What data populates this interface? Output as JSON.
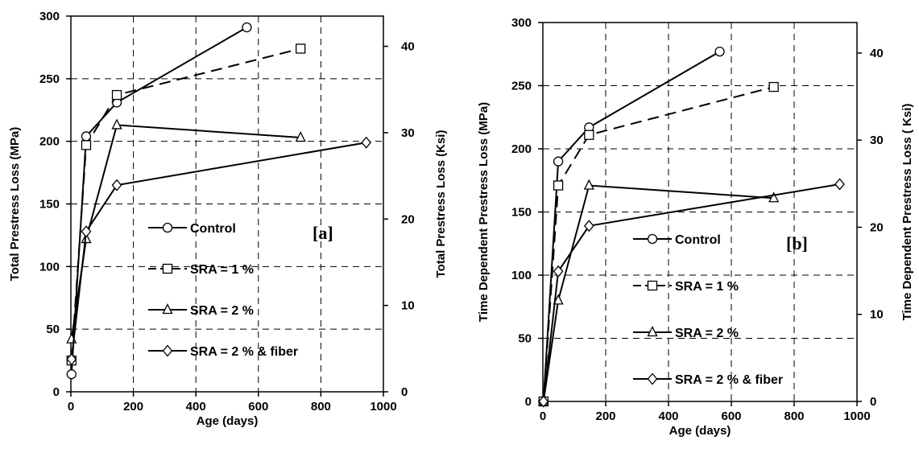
{
  "chart_data": [
    {
      "type": "line",
      "panel_label": "[a]",
      "xlabel": "Age (days)",
      "ylabel": "Total Prestress Loss (MPa)",
      "y2label": "Total Prestress Loss (Ksi)",
      "xlim": [
        0,
        1000
      ],
      "ylim": [
        0,
        300
      ],
      "y2lim": [
        0,
        43.5
      ],
      "xticks": [
        "0",
        "200",
        "400",
        "600",
        "800",
        "1000"
      ],
      "xtick_values": [
        0,
        200,
        400,
        600,
        800,
        1000
      ],
      "yticks": [
        "0",
        "50",
        "100",
        "150",
        "200",
        "250",
        "300"
      ],
      "ytick_values": [
        0,
        50,
        100,
        150,
        200,
        250,
        300
      ],
      "y2ticks": [
        "0",
        "10",
        "20",
        "30",
        "40"
      ],
      "y2tick_values": [
        0,
        10,
        20,
        30,
        40
      ],
      "grid": true,
      "legend_position": "center-right",
      "series": [
        {
          "name": "Control",
          "marker": "circle",
          "dash": "solid",
          "x": [
            2,
            49,
            147,
            563
          ],
          "y": [
            14,
            204,
            231,
            291
          ]
        },
        {
          "name": "SRA = 1 %",
          "marker": "square",
          "dash": "dashed",
          "x": [
            2,
            49,
            147,
            735
          ],
          "y": [
            25,
            197,
            237,
            274
          ]
        },
        {
          "name": "SRA = 2 %",
          "marker": "triangle",
          "dash": "solid",
          "x": [
            2,
            49,
            147,
            735
          ],
          "y": [
            42,
            122,
            213,
            203
          ]
        },
        {
          "name": "SRA = 2 % & fiber",
          "marker": "diamond",
          "dash": "solid",
          "x": [
            2,
            49,
            147,
            945
          ],
          "y": [
            26,
            128,
            165,
            199
          ]
        }
      ]
    },
    {
      "type": "line",
      "panel_label": "[b]",
      "xlabel": "Age (days)",
      "ylabel": "Time Dependent Prestress Loss (MPa)",
      "y2label": "Time Dependent Prestress Loss ( Ksi)",
      "xlim": [
        0,
        1000
      ],
      "ylim": [
        0,
        300
      ],
      "y2lim": [
        0,
        43.5
      ],
      "xticks": [
        "0",
        "200",
        "400",
        "600",
        "800",
        "1000"
      ],
      "xtick_values": [
        0,
        200,
        400,
        600,
        800,
        1000
      ],
      "yticks": [
        "0",
        "50",
        "100",
        "150",
        "200",
        "250",
        "300"
      ],
      "ytick_values": [
        0,
        50,
        100,
        150,
        200,
        250,
        300
      ],
      "y2ticks": [
        "0",
        "10",
        "20",
        "30",
        "40"
      ],
      "y2tick_values": [
        0,
        10,
        20,
        30,
        40
      ],
      "grid": true,
      "legend_position": "center-right",
      "series": [
        {
          "name": "Control",
          "marker": "circle",
          "dash": "solid",
          "x": [
            2,
            49,
            147,
            563
          ],
          "y": [
            0,
            190,
            217,
            277
          ]
        },
        {
          "name": "SRA = 1 %",
          "marker": "square",
          "dash": "dashed",
          "x": [
            2,
            49,
            147,
            735
          ],
          "y": [
            0,
            171,
            211,
            249
          ]
        },
        {
          "name": "SRA = 2 %",
          "marker": "triangle",
          "dash": "solid",
          "x": [
            2,
            49,
            147,
            735
          ],
          "y": [
            0,
            80,
            171,
            161
          ]
        },
        {
          "name": "SRA = 2 % & fiber",
          "marker": "diamond",
          "dash": "solid",
          "x": [
            2,
            49,
            147,
            945
          ],
          "y": [
            0,
            103,
            139,
            172
          ]
        }
      ]
    }
  ]
}
